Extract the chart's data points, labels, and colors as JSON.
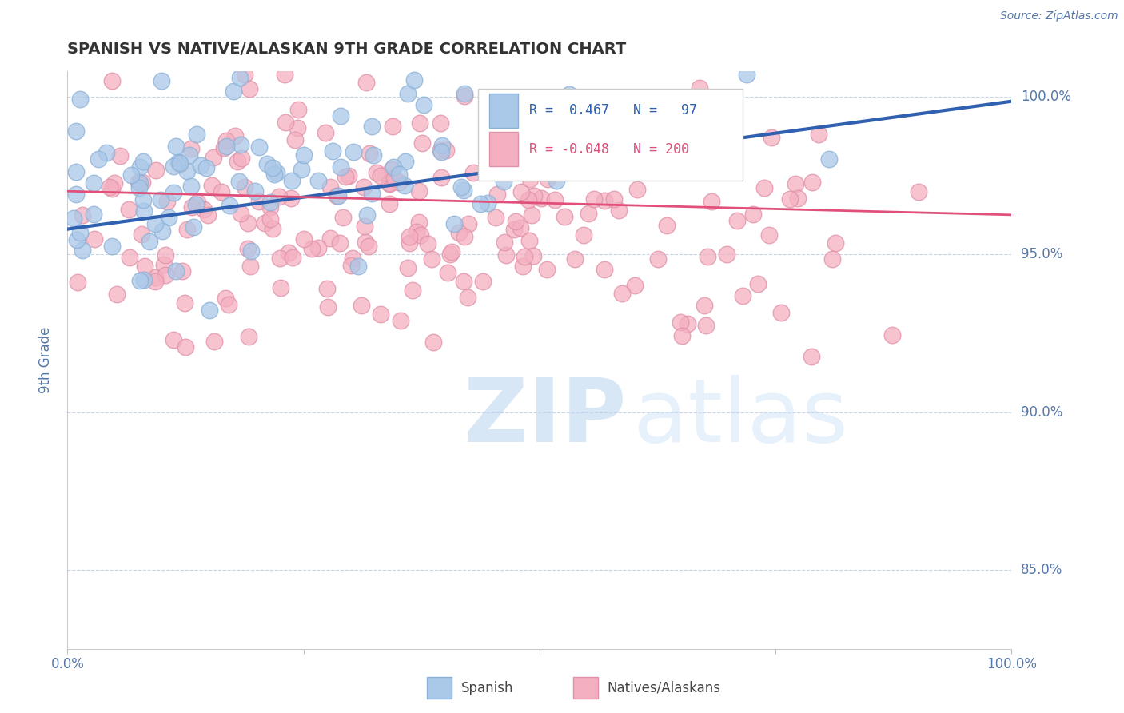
{
  "title": "SPANISH VS NATIVE/ALASKAN 9TH GRADE CORRELATION CHART",
  "source": "Source: ZipAtlas.com",
  "ylabel": "9th Grade",
  "x_min": 0.0,
  "x_max": 1.0,
  "y_min": 0.825,
  "y_max": 1.008,
  "y_ticks": [
    0.85,
    0.9,
    0.95,
    1.0
  ],
  "y_tick_labels": [
    "85.0%",
    "90.0%",
    "95.0%",
    "100.0%"
  ],
  "blue_fill": "#aac8e8",
  "blue_edge": "#8ab0d8",
  "pink_fill": "#f4afc0",
  "pink_edge": "#e090a8",
  "blue_line_color": "#3060b0",
  "pink_line_color": "#e0507a",
  "blue_R": 0.467,
  "blue_N": 97,
  "pink_R": -0.048,
  "pink_N": 200,
  "blue_line_start_x": 0.0,
  "blue_line_start_y": 0.958,
  "blue_line_end_x": 1.0,
  "blue_line_end_y": 0.9985,
  "pink_line_start_x": 0.0,
  "pink_line_start_y": 0.97,
  "pink_line_end_x": 1.0,
  "pink_line_end_y": 0.9625,
  "background_color": "#ffffff",
  "grid_color": "#c8d4e8",
  "title_color": "#333333",
  "axis_label_color": "#5577aa",
  "right_tick_color": "#5577aa",
  "watermark_zip_color": "#b8d4f0",
  "watermark_atlas_color": "#c8e0f8"
}
